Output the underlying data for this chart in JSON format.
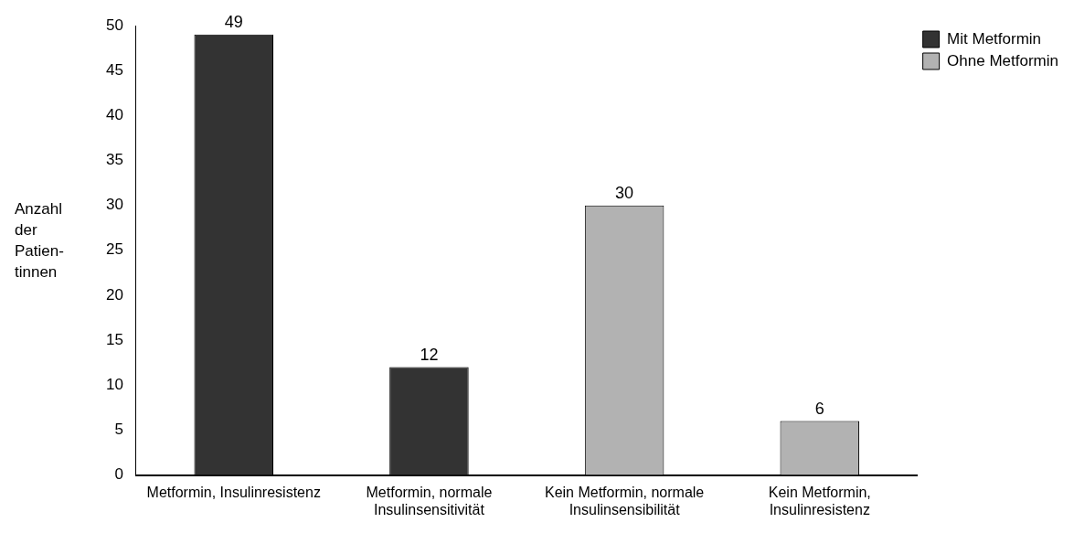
{
  "chart_data": {
    "type": "bar",
    "ylabel": "Anzahl der Patien-tinnen",
    "categories": [
      "Metformin, Insulinresistenz",
      "Metformin, normale Insulinsensitivität",
      "Kein Metformin, normale Insulinsensibilität",
      "Kein Metformin, Insulinresistenz"
    ],
    "series": [
      {
        "name": "Mit Metformin",
        "color": "#333333",
        "values": [
          49,
          12,
          null,
          null
        ]
      },
      {
        "name": "Ohne Metformin",
        "color": "#b2b2b2",
        "values": [
          null,
          null,
          30,
          6
        ]
      }
    ],
    "ylim": [
      0,
      50
    ],
    "yticks": [
      0,
      5,
      10,
      15,
      20,
      25,
      30,
      35,
      40,
      45,
      50
    ],
    "grid": false,
    "legend": "top right",
    "data_labels": true
  }
}
